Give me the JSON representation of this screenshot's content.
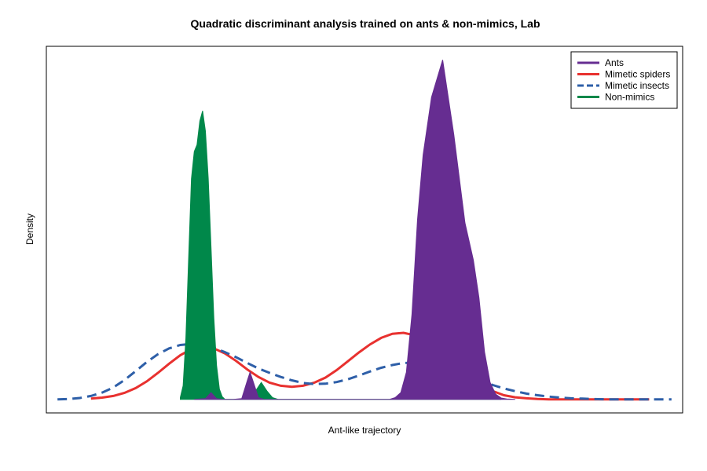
{
  "chart_data": {
    "type": "area",
    "title": "Quadratic discriminant analysis trained on ants & non-mimics, Lab",
    "xlabel": "Ant-like trajectory",
    "ylabel": "Density",
    "grid": false,
    "legend_position": "top-right",
    "series": [
      {
        "name": "Ants",
        "color": "#662D91",
        "style": "filled",
        "x": [
          0.185,
          0.205,
          0.215,
          0.225,
          0.235,
          0.255,
          0.27,
          0.28,
          0.285,
          0.29,
          0.3,
          0.31,
          0.325,
          0.335,
          0.345,
          0.355,
          0.365,
          0.375,
          0.385,
          0.395,
          0.405,
          0.415,
          0.425,
          0.435,
          0.445,
          0.455,
          0.465,
          0.475,
          0.485,
          0.495,
          0.505,
          0.515,
          0.525,
          0.535,
          0.545,
          0.555,
          0.565,
          0.575,
          0.585,
          0.595,
          0.61,
          0.63,
          0.65,
          0.67,
          0.685,
          0.695,
          0.705,
          0.715,
          0.725,
          0.735,
          0.745,
          0.76
        ],
        "y": [
          0,
          0.02,
          0.2,
          0.02,
          0,
          0,
          0.02,
          0.55,
          0.8,
          0.55,
          0.05,
          0,
          0,
          0,
          0,
          0,
          0,
          0,
          0,
          0,
          0,
          0,
          0,
          0,
          0,
          0,
          0,
          0,
          0,
          0,
          0,
          0,
          0,
          0,
          0.05,
          0.2,
          0.8,
          2.5,
          5.3,
          7.2,
          8.9,
          10.0,
          7.8,
          5.2,
          4.1,
          3.0,
          1.4,
          0.5,
          0.15,
          0.04,
          0.01,
          0
        ]
      },
      {
        "name": "Mimetic spiders",
        "color": "#E8312F",
        "style": "solid",
        "x": [
          0.0,
          0.02,
          0.04,
          0.06,
          0.08,
          0.1,
          0.12,
          0.14,
          0.16,
          0.18,
          0.2,
          0.22,
          0.24,
          0.26,
          0.28,
          0.3,
          0.32,
          0.34,
          0.36,
          0.38,
          0.4,
          0.42,
          0.44,
          0.46,
          0.48,
          0.5,
          0.52,
          0.54,
          0.56,
          0.58,
          0.6,
          0.62,
          0.64,
          0.66,
          0.68,
          0.7,
          0.72,
          0.74,
          0.76,
          0.78,
          0.8,
          0.82,
          0.84,
          0.86,
          0.88,
          0.9,
          0.92,
          0.94,
          0.96,
          0.98,
          1.0
        ],
        "y": [
          0.02,
          0.05,
          0.1,
          0.19,
          0.33,
          0.53,
          0.78,
          1.05,
          1.3,
          1.48,
          1.55,
          1.5,
          1.35,
          1.13,
          0.88,
          0.66,
          0.49,
          0.4,
          0.37,
          0.4,
          0.49,
          0.64,
          0.86,
          1.12,
          1.38,
          1.62,
          1.81,
          1.93,
          1.96,
          1.89,
          1.72,
          1.48,
          1.2,
          0.91,
          0.64,
          0.41,
          0.24,
          0.12,
          0.06,
          0.03,
          0.01,
          0,
          0,
          0,
          0,
          0,
          0,
          0,
          0,
          0,
          0
        ]
      },
      {
        "name": "Mimetic insects",
        "color": "#2E5FA8",
        "style": "dashed",
        "x": [
          -0.06,
          -0.04,
          -0.02,
          0.0,
          0.02,
          0.04,
          0.06,
          0.08,
          0.1,
          0.12,
          0.14,
          0.16,
          0.18,
          0.2,
          0.22,
          0.24,
          0.26,
          0.28,
          0.3,
          0.32,
          0.34,
          0.36,
          0.38,
          0.4,
          0.42,
          0.44,
          0.46,
          0.48,
          0.5,
          0.52,
          0.54,
          0.56,
          0.58,
          0.6,
          0.62,
          0.64,
          0.66,
          0.68,
          0.7,
          0.72,
          0.74,
          0.76,
          0.78,
          0.8,
          0.82,
          0.84,
          0.86,
          0.88,
          0.9,
          0.92,
          0.94,
          0.96,
          0.98,
          1.0,
          1.02,
          1.04
        ],
        "y": [
          0,
          0.01,
          0.04,
          0.1,
          0.2,
          0.35,
          0.57,
          0.83,
          1.1,
          1.33,
          1.5,
          1.6,
          1.63,
          1.6,
          1.52,
          1.39,
          1.24,
          1.07,
          0.91,
          0.78,
          0.66,
          0.56,
          0.48,
          0.45,
          0.46,
          0.51,
          0.59,
          0.7,
          0.82,
          0.93,
          1.01,
          1.07,
          1.08,
          1.06,
          1.01,
          0.92,
          0.8,
          0.67,
          0.54,
          0.42,
          0.32,
          0.24,
          0.17,
          0.12,
          0.08,
          0.05,
          0.03,
          0.02,
          0.01,
          0,
          0,
          0,
          0,
          0,
          0,
          0
        ]
      },
      {
        "name": "Non-mimics",
        "color": "#00884A",
        "style": "filled",
        "x": [
          0.16,
          0.165,
          0.17,
          0.175,
          0.18,
          0.185,
          0.19,
          0.195,
          0.2,
          0.205,
          0.21,
          0.215,
          0.22,
          0.225,
          0.23,
          0.235,
          0.24,
          0.25,
          0.26,
          0.275,
          0.285,
          0.295,
          0.305,
          0.315,
          0.325,
          0.335,
          0.345,
          0.355,
          0.365,
          0.375,
          0.385,
          0.395,
          0.405,
          0.415,
          0.425,
          0.435,
          0.445,
          0.455,
          0.465,
          0.475,
          0.485,
          0.495,
          0.505,
          0.515,
          0.525,
          0.535,
          0.545,
          0.555,
          0.565,
          0.575,
          0.585,
          0.595,
          0.605,
          0.615,
          0.625,
          0.635,
          0.645,
          0.655,
          0.665,
          0.675,
          0.685,
          0.695,
          0.705,
          0.715,
          0.725,
          0.735
        ],
        "y": [
          0.05,
          0.4,
          1.8,
          4.2,
          6.5,
          7.3,
          7.5,
          8.2,
          8.5,
          7.9,
          6.5,
          4.5,
          2.4,
          1.0,
          0.3,
          0.08,
          0,
          0,
          0,
          0,
          0.05,
          0.25,
          0.5,
          0.25,
          0.05,
          0,
          0,
          0,
          0,
          0,
          0,
          0,
          0,
          0,
          0,
          0,
          0,
          0,
          0,
          0,
          0,
          0,
          0,
          0,
          0,
          0,
          0,
          0,
          0,
          0,
          0,
          0,
          0.15,
          0.5,
          0.25,
          0.05,
          0,
          0.1,
          0.35,
          0.5,
          0.35,
          0.1,
          0.02,
          0,
          0,
          0
        ]
      }
    ],
    "xlim": [
      -0.08,
      1.06
    ],
    "ylim": [
      -0.4,
      10.4
    ]
  }
}
